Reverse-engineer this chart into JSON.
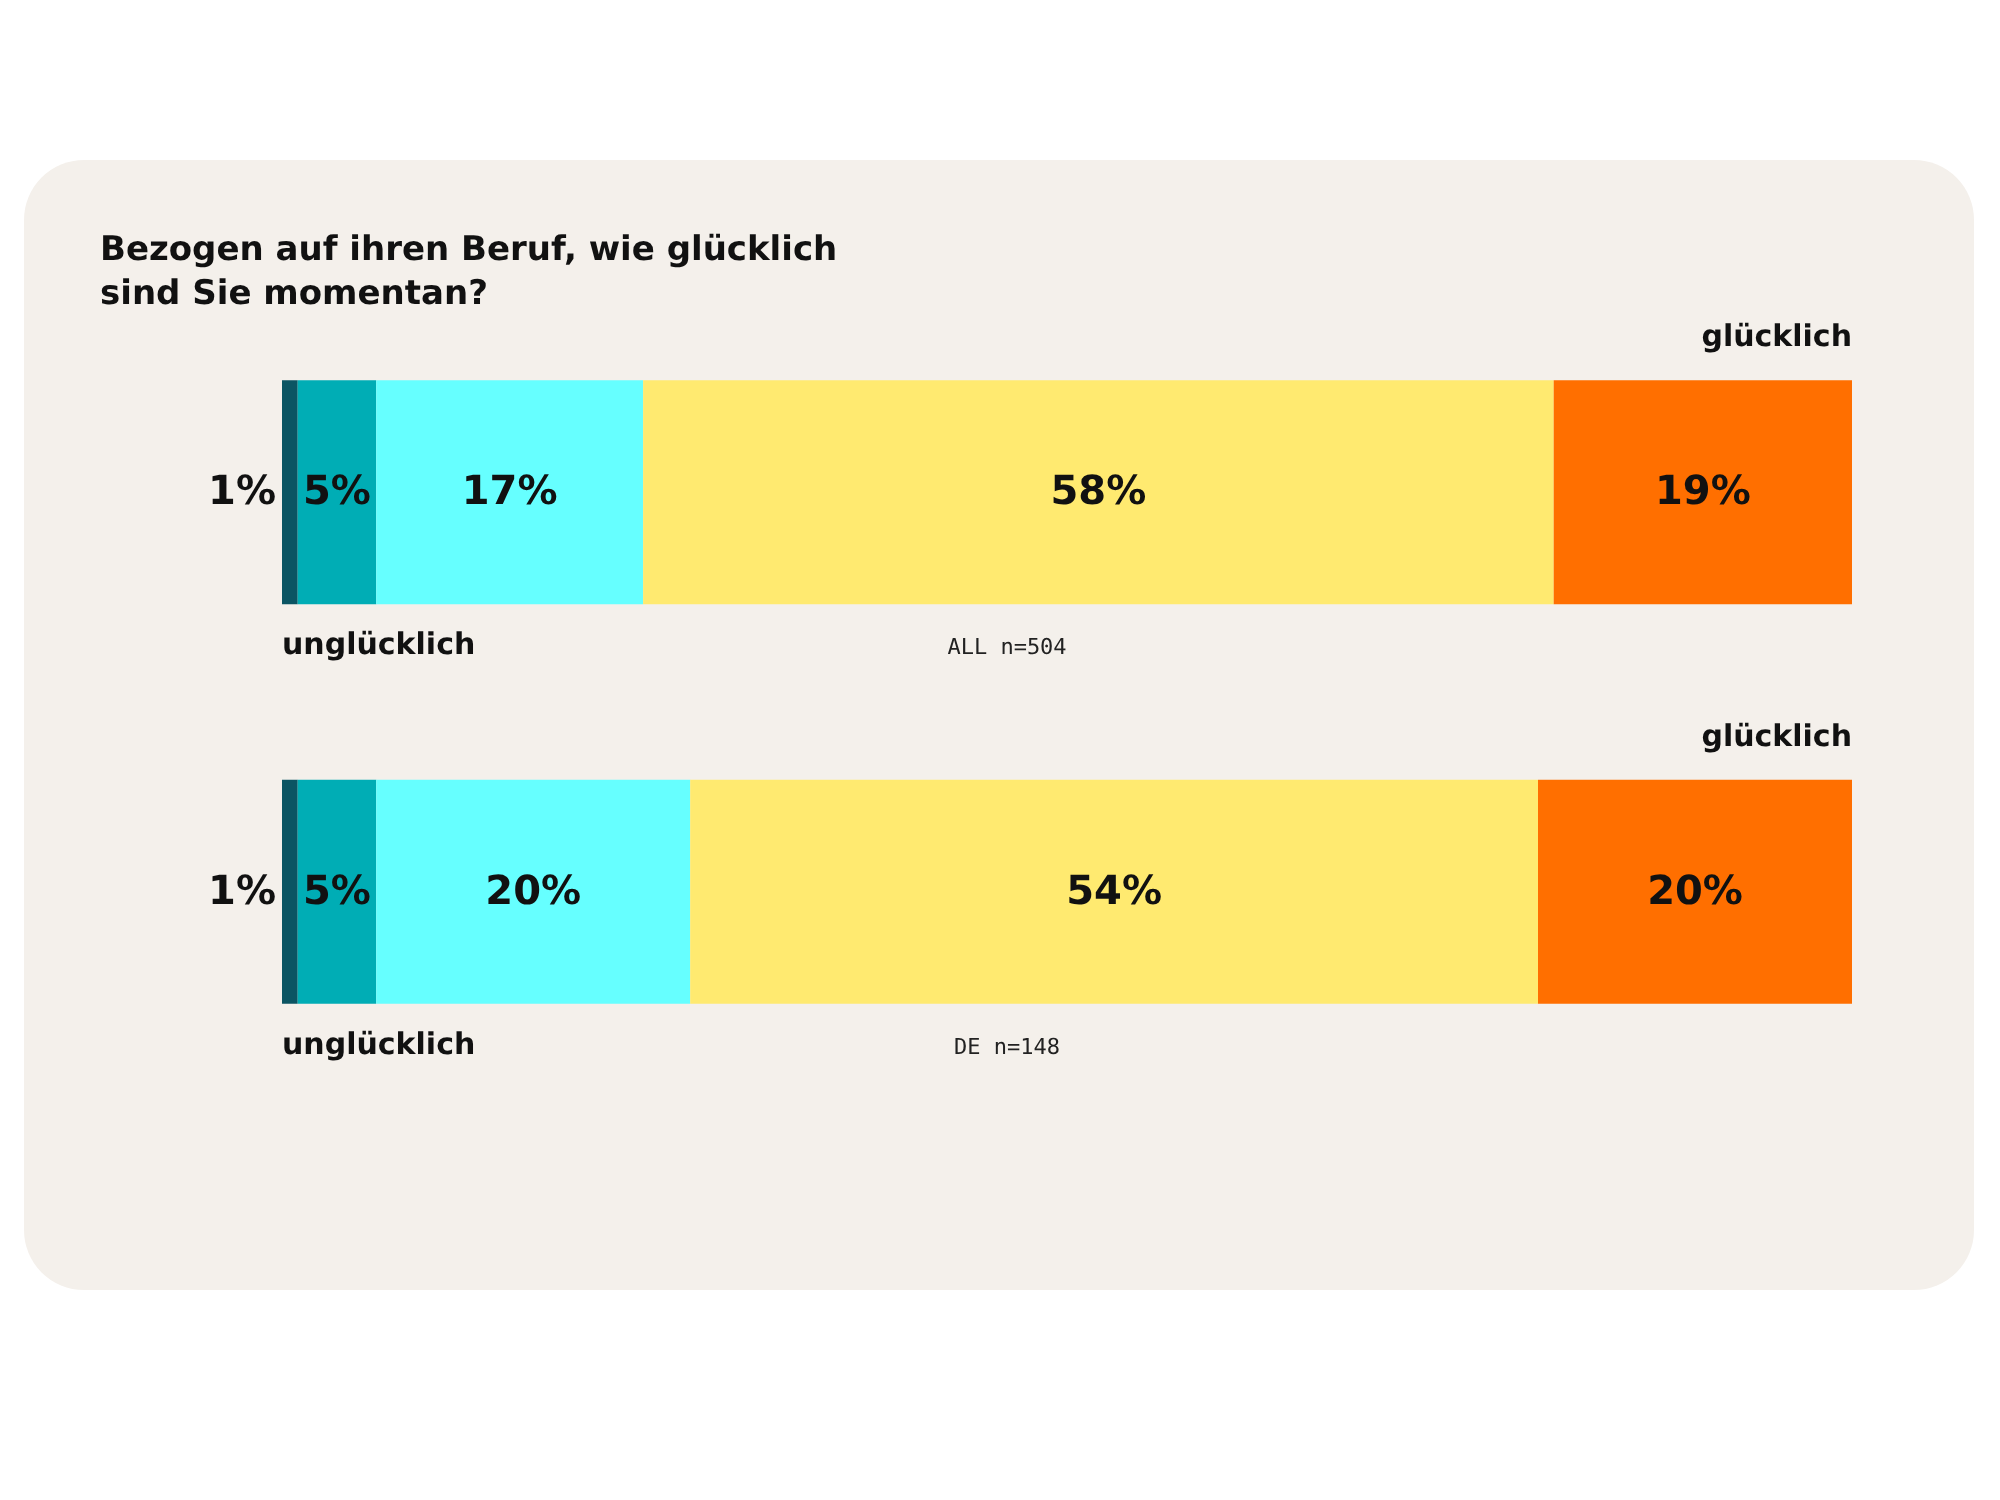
{
  "chart_data": {
    "type": "bar",
    "orientation": "horizontal",
    "stacked": true,
    "title": "Bezogen auf ihren Beruf, wie glücklich sind Sie momentan?",
    "categories": [
      "ALL n=504",
      "DE n=148"
    ],
    "xlim": [
      0,
      100
    ],
    "series": [
      {
        "color": "#0b5563",
        "values": [
          1,
          1
        ],
        "value_labels": [
          "1%",
          "1%"
        ]
      },
      {
        "color": "#00adb5",
        "values": [
          5,
          5
        ],
        "value_labels": [
          "5%",
          "5%"
        ]
      },
      {
        "color": "#66ffff",
        "values": [
          17,
          20
        ],
        "value_labels": [
          "17%",
          "20%"
        ]
      },
      {
        "color": "#ffea70",
        "values": [
          58,
          54
        ],
        "value_labels": [
          "58%",
          "54%"
        ]
      },
      {
        "color": "#ff6f00",
        "values": [
          19,
          20
        ],
        "value_labels": [
          "19%",
          "20%"
        ]
      }
    ],
    "annotations": [
      "glücklich",
      "unglücklich",
      "glücklich",
      "unglücklich"
    ]
  }
}
